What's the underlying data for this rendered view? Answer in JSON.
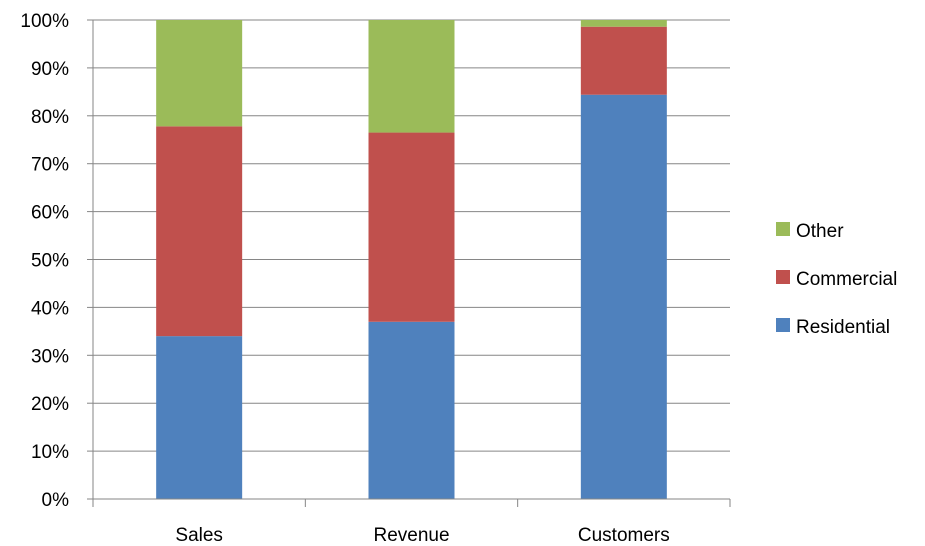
{
  "chart_data": {
    "type": "bar",
    "stacked": true,
    "percent_stacked": true,
    "categories": [
      "Sales",
      "Revenue",
      "Customers"
    ],
    "series": [
      {
        "name": "Residential",
        "color": "#4f81bd",
        "values": [
          34,
          37,
          84.4
        ]
      },
      {
        "name": "Commercial",
        "color": "#c0504d",
        "values": [
          43.8,
          39.5,
          14.2
        ]
      },
      {
        "name": "Other",
        "color": "#9bbb59",
        "values": [
          22.2,
          23.5,
          1.4
        ]
      }
    ],
    "ylim": [
      0,
      100
    ],
    "y_ticks": [
      "0%",
      "10%",
      "20%",
      "30%",
      "40%",
      "50%",
      "60%",
      "70%",
      "80%",
      "90%",
      "100%"
    ],
    "grid": true,
    "legend_position": "right",
    "legend_order": [
      "Other",
      "Commercial",
      "Residential"
    ]
  }
}
